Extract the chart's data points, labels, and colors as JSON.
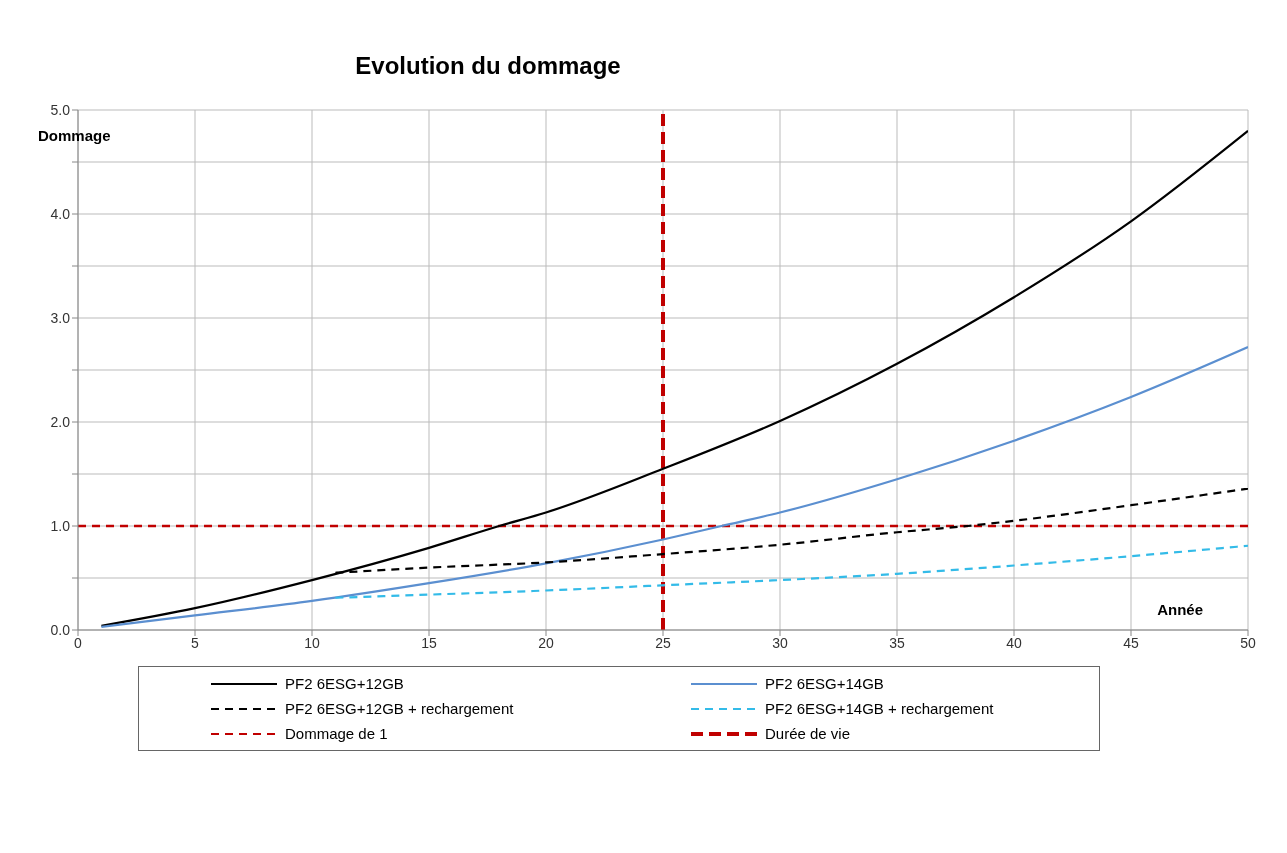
{
  "chart_data": {
    "type": "line",
    "title": "Evolution du dommage",
    "xlabel": "Année",
    "ylabel": "Dommage",
    "xlim": [
      0,
      50
    ],
    "xticks": [
      0,
      5,
      10,
      15,
      20,
      25,
      30,
      35,
      40,
      45,
      50
    ],
    "ylim": [
      0,
      5
    ],
    "yticks": [
      {
        "value": 0,
        "label": "0.0"
      },
      {
        "value": 0.5,
        "label": null
      },
      {
        "value": 1,
        "label": "1.0"
      },
      {
        "value": 1.5,
        "label": null
      },
      {
        "value": 2,
        "label": "2.0"
      },
      {
        "value": 2.5,
        "label": null
      },
      {
        "value": 3,
        "label": "3.0"
      },
      {
        "value": 3.5,
        "label": null
      },
      {
        "value": 4,
        "label": "4.0"
      },
      {
        "value": 4.5,
        "label": null
      },
      {
        "value": 5,
        "label": "5.0"
      }
    ],
    "grid": true,
    "legend": "bottom",
    "marker": "none",
    "series": [
      {
        "name": "PF2 6ESG+12GB",
        "color": "#000000",
        "line_style": "solid",
        "x": [
          1,
          5,
          10,
          15,
          18,
          20,
          25,
          30,
          35,
          40,
          45,
          50
        ],
        "values": [
          0.04,
          0.21,
          0.48,
          0.79,
          1.0,
          1.13,
          1.55,
          2.01,
          2.56,
          3.2,
          3.93,
          4.8
        ]
      },
      {
        "name": "PF2 6ESG+14GB",
        "color": "#5b8fd0",
        "line_style": "solid",
        "x": [
          1,
          5,
          10,
          15,
          20,
          25,
          27.5,
          30,
          35,
          40,
          45,
          50
        ],
        "values": [
          0.03,
          0.14,
          0.28,
          0.45,
          0.64,
          0.87,
          1.0,
          1.13,
          1.45,
          1.82,
          2.24,
          2.72
        ]
      },
      {
        "name": "PF2 6ESG+12GB + rechargement",
        "color": "#000000",
        "line_style": "dashed",
        "x": [
          11,
          15,
          20,
          25,
          30,
          35,
          38,
          40,
          45,
          50
        ],
        "values": [
          0.55,
          0.6,
          0.65,
          0.73,
          0.82,
          0.94,
          1.0,
          1.05,
          1.2,
          1.36
        ]
      },
      {
        "name": "PF2 6ESG+14GB + rechargement",
        "color": "#33bbe8",
        "line_style": "dashed",
        "x": [
          11,
          15,
          20,
          25,
          30,
          35,
          40,
          45,
          50
        ],
        "values": [
          0.31,
          0.34,
          0.38,
          0.43,
          0.48,
          0.54,
          0.62,
          0.71,
          0.81
        ]
      }
    ],
    "ref_lines": [
      {
        "axis": "y",
        "value": 1,
        "label": "Dommage de 1",
        "color": "#c00000",
        "line_style": "dashed"
      },
      {
        "axis": "x",
        "value": 25,
        "label": "Durée de vie",
        "color": "#c00000",
        "line_style": "dashed"
      }
    ]
  }
}
